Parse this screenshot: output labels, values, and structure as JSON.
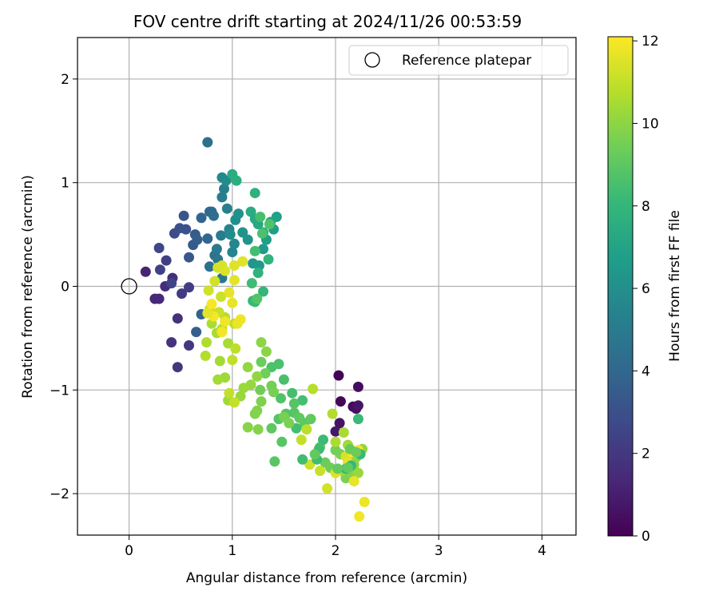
{
  "chart_data": {
    "type": "scatter",
    "title": "FOV centre drift starting at 2024/11/26 00:53:59",
    "xlabel": "Angular distance from reference (arcmin)",
    "ylabel": "Rotation from reference (arcmin)",
    "xlim": [
      -0.5,
      4.33
    ],
    "ylim": [
      -2.4,
      2.4
    ],
    "xticks": [
      0,
      1,
      2,
      3,
      4
    ],
    "xtick_labels": [
      "0",
      "1",
      "2",
      "3",
      "4"
    ],
    "yticks": [
      2,
      1,
      0,
      -1,
      -2
    ],
    "ytick_labels": [
      "2",
      "1",
      "0",
      "−1",
      "−2"
    ],
    "grid": true,
    "legend": {
      "position": "top-right",
      "entries": [
        "Reference platepar"
      ]
    },
    "reference_point": {
      "x": 0,
      "y": 0,
      "label": "Reference platepar"
    },
    "colorbar": {
      "label": "Hours from first FF file",
      "range": [
        0,
        12.1
      ],
      "ticks": [
        0,
        2,
        4,
        6,
        8,
        10,
        12
      ],
      "tick_labels": [
        "0",
        "2",
        "4",
        "6",
        "8",
        "10",
        "12"
      ],
      "colormap": "viridis",
      "colors": [
        "#440154",
        "#482878",
        "#3e4989",
        "#31688e",
        "#26828e",
        "#1f9e89",
        "#35b779",
        "#6ece58",
        "#b5de2b",
        "#fde725"
      ]
    },
    "points": [
      [
        2.03,
        -0.86,
        0.1
      ],
      [
        2.05,
        -1.11,
        0.2
      ],
      [
        2.17,
        -1.16,
        0.3
      ],
      [
        2.22,
        -0.97,
        0.4
      ],
      [
        2.2,
        -1.18,
        0.5
      ],
      [
        2.04,
        -1.32,
        0.6
      ],
      [
        2.22,
        -1.15,
        0.7
      ],
      [
        2.0,
        -1.4,
        0.8
      ],
      [
        0.16,
        0.14,
        1.2
      ],
      [
        0.25,
        -0.12,
        1.3
      ],
      [
        0.29,
        -0.12,
        1.4
      ],
      [
        0.35,
        0.0,
        1.5
      ],
      [
        0.42,
        0.08,
        1.6
      ],
      [
        0.47,
        -0.31,
        1.7
      ],
      [
        0.41,
        -0.54,
        1.8
      ],
      [
        0.47,
        -0.78,
        1.9
      ],
      [
        0.58,
        -0.57,
        2.0
      ],
      [
        0.51,
        -0.07,
        2.1
      ],
      [
        0.58,
        -0.01,
        2.2
      ],
      [
        0.36,
        0.25,
        2.3
      ],
      [
        0.3,
        0.16,
        2.4
      ],
      [
        0.41,
        0.03,
        2.5
      ],
      [
        0.29,
        0.37,
        2.6
      ],
      [
        0.44,
        0.51,
        2.8
      ],
      [
        0.49,
        0.56,
        3.0
      ],
      [
        0.55,
        0.55,
        3.1
      ],
      [
        0.53,
        0.68,
        3.2
      ],
      [
        0.58,
        0.28,
        3.3
      ],
      [
        0.62,
        0.4,
        3.4
      ],
      [
        0.64,
        0.5,
        3.5
      ],
      [
        0.66,
        0.45,
        3.6
      ],
      [
        0.65,
        -0.44,
        3.7
      ],
      [
        0.7,
        -0.27,
        3.8
      ],
      [
        0.7,
        0.66,
        3.9
      ],
      [
        0.76,
        0.46,
        4.0
      ],
      [
        0.78,
        0.72,
        4.1
      ],
      [
        0.8,
        0.72,
        4.2
      ],
      [
        0.82,
        0.68,
        4.3
      ],
      [
        0.76,
        1.39,
        4.4
      ],
      [
        0.78,
        0.19,
        4.5
      ],
      [
        0.83,
        0.3,
        4.6
      ],
      [
        0.86,
        0.26,
        4.7
      ],
      [
        0.9,
        0.08,
        4.8
      ],
      [
        0.85,
        0.36,
        4.9
      ],
      [
        0.89,
        0.49,
        5.0
      ],
      [
        0.9,
        0.86,
        5.1
      ],
      [
        0.92,
        0.94,
        5.2
      ],
      [
        0.95,
        0.75,
        5.3
      ],
      [
        0.97,
        0.55,
        5.4
      ],
      [
        1.0,
        0.33,
        5.5
      ],
      [
        1.02,
        0.41,
        5.6
      ],
      [
        0.9,
        1.05,
        5.7
      ],
      [
        0.94,
        1.02,
        5.8
      ],
      [
        0.98,
        0.5,
        5.9
      ],
      [
        1.03,
        0.64,
        6.0
      ],
      [
        1.06,
        0.7,
        6.1
      ],
      [
        1.1,
        0.52,
        6.2
      ],
      [
        1.15,
        0.45,
        6.3
      ],
      [
        1.2,
        0.22,
        6.4
      ],
      [
        1.26,
        0.2,
        6.5
      ],
      [
        1.3,
        0.36,
        6.6
      ],
      [
        1.33,
        0.45,
        6.7
      ],
      [
        1.4,
        0.55,
        6.8
      ],
      [
        1.43,
        0.67,
        6.9
      ],
      [
        1.37,
        0.62,
        7.0
      ],
      [
        1.3,
        0.52,
        7.1
      ],
      [
        1.25,
        0.6,
        7.2
      ],
      [
        1.22,
        0.65,
        7.3
      ],
      [
        1.18,
        0.72,
        7.4
      ],
      [
        1.0,
        1.08,
        7.5
      ],
      [
        1.04,
        1.02,
        7.6
      ],
      [
        1.22,
        0.9,
        7.7
      ],
      [
        1.25,
        0.13,
        7.8
      ],
      [
        1.35,
        0.26,
        7.9
      ],
      [
        1.3,
        -0.05,
        8.0
      ],
      [
        1.2,
        -0.14,
        8.1
      ],
      [
        1.22,
        -0.15,
        8.2
      ],
      [
        1.19,
        0.03,
        8.3
      ],
      [
        1.22,
        0.34,
        8.4
      ],
      [
        1.27,
        0.67,
        8.5
      ],
      [
        1.29,
        0.51,
        8.6
      ],
      [
        1.36,
        0.6,
        8.7
      ],
      [
        1.24,
        -0.12,
        8.8
      ],
      [
        1.6,
        -1.22,
        8.9
      ],
      [
        1.7,
        -1.32,
        9.0
      ],
      [
        1.76,
        -1.28,
        9.1
      ],
      [
        1.85,
        -1.55,
        9.2
      ],
      [
        1.9,
        -1.7,
        9.3
      ],
      [
        1.95,
        -1.75,
        9.4
      ],
      [
        2.0,
        -1.58,
        9.5
      ],
      [
        2.05,
        -1.62,
        9.6
      ],
      [
        2.1,
        -1.85,
        9.7
      ],
      [
        2.15,
        -1.8,
        9.8
      ],
      [
        2.18,
        -1.72,
        9.9
      ],
      [
        2.2,
        -1.65,
        10.0
      ],
      [
        2.26,
        -1.57,
        10.1
      ],
      [
        2.22,
        -1.8,
        10.2
      ],
      [
        2.06,
        -1.78,
        10.3
      ],
      [
        2.12,
        -1.53,
        10.4
      ],
      [
        2.08,
        -1.41,
        10.5
      ],
      [
        2.0,
        -1.5,
        10.6
      ],
      [
        1.97,
        -1.23,
        10.7
      ],
      [
        1.78,
        -0.99,
        10.8
      ],
      [
        1.72,
        -1.38,
        10.9
      ],
      [
        1.67,
        -1.48,
        11.0
      ],
      [
        1.85,
        -1.78,
        11.1
      ],
      [
        1.75,
        -1.72,
        11.2
      ],
      [
        1.92,
        -1.95,
        11.3
      ],
      [
        2.1,
        -1.64,
        11.4
      ],
      [
        2.0,
        -1.8,
        11.5
      ],
      [
        2.12,
        -1.7,
        11.6
      ],
      [
        2.18,
        -1.88,
        11.7
      ],
      [
        2.28,
        -2.08,
        11.8
      ],
      [
        2.23,
        -2.22,
        11.9
      ],
      [
        2.22,
        -1.58,
        11.95
      ],
      [
        2.16,
        -1.6,
        12.0
      ],
      [
        2.15,
        -1.73,
        8.0
      ],
      [
        2.1,
        -1.76,
        8.05
      ],
      [
        2.24,
        -1.62,
        8.1
      ],
      [
        2.22,
        -1.28,
        8.15
      ],
      [
        1.88,
        -1.48,
        8.2
      ],
      [
        1.84,
        -1.57,
        8.25
      ],
      [
        1.82,
        -1.67,
        8.3
      ],
      [
        1.68,
        -1.67,
        8.35
      ],
      [
        1.62,
        -1.37,
        8.4
      ],
      [
        1.68,
        -1.1,
        8.45
      ],
      [
        1.58,
        -1.03,
        8.5
      ],
      [
        1.5,
        -0.9,
        8.55
      ],
      [
        1.45,
        -0.75,
        8.6
      ],
      [
        1.38,
        -0.78,
        8.65
      ],
      [
        1.47,
        -1.08,
        8.7
      ],
      [
        1.52,
        -1.23,
        8.75
      ],
      [
        1.45,
        -1.28,
        8.8
      ],
      [
        1.6,
        -1.13,
        8.85
      ],
      [
        1.48,
        -1.5,
        8.9
      ],
      [
        1.41,
        -1.69,
        8.95
      ],
      [
        1.38,
        -1.37,
        9.0
      ],
      [
        1.65,
        -1.27,
        9.05
      ],
      [
        1.8,
        -1.62,
        9.1
      ],
      [
        2.12,
        -1.75,
        9.15
      ],
      [
        2.02,
        -1.76,
        9.2
      ],
      [
        2.14,
        -1.57,
        9.25
      ],
      [
        2.2,
        -1.6,
        9.3
      ],
      [
        1.28,
        -0.73,
        9.35
      ],
      [
        1.32,
        -0.84,
        9.4
      ],
      [
        1.27,
        -1.0,
        9.45
      ],
      [
        1.38,
        -0.96,
        9.5
      ],
      [
        1.4,
        -1.02,
        9.55
      ],
      [
        1.5,
        -1.26,
        9.6
      ],
      [
        1.55,
        -1.32,
        9.65
      ],
      [
        1.28,
        -1.11,
        9.7
      ],
      [
        1.24,
        -1.2,
        9.75
      ],
      [
        1.22,
        -1.23,
        9.8
      ],
      [
        1.25,
        -1.38,
        9.85
      ],
      [
        1.15,
        -1.36,
        9.9
      ],
      [
        1.33,
        -0.63,
        9.95
      ],
      [
        1.28,
        -0.54,
        10.0
      ],
      [
        1.24,
        -0.87,
        10.05
      ],
      [
        1.15,
        -0.78,
        10.1
      ],
      [
        1.18,
        -0.95,
        10.15
      ],
      [
        1.08,
        -1.06,
        10.2
      ],
      [
        1.11,
        -0.98,
        10.25
      ],
      [
        0.93,
        -0.88,
        10.3
      ],
      [
        0.96,
        -1.1,
        10.35
      ],
      [
        0.86,
        -0.9,
        10.4
      ],
      [
        0.88,
        -0.72,
        10.45
      ],
      [
        0.96,
        -0.55,
        10.5
      ],
      [
        0.85,
        -0.45,
        10.55
      ],
      [
        0.8,
        -0.36,
        10.6
      ],
      [
        0.75,
        -0.54,
        10.65
      ],
      [
        0.74,
        -0.67,
        10.7
      ],
      [
        0.9,
        -0.41,
        10.75
      ],
      [
        0.93,
        -0.3,
        10.8
      ],
      [
        1.02,
        -0.36,
        10.85
      ],
      [
        1.03,
        -0.6,
        10.9
      ],
      [
        1.0,
        -0.71,
        10.95
      ],
      [
        0.97,
        -1.03,
        11.0
      ],
      [
        1.02,
        -1.12,
        11.05
      ],
      [
        0.87,
        -0.25,
        11.1
      ],
      [
        0.89,
        -0.1,
        11.15
      ],
      [
        0.78,
        -0.22,
        11.2
      ],
      [
        0.77,
        -0.04,
        11.25
      ],
      [
        0.83,
        0.05,
        11.3
      ],
      [
        0.86,
        0.18,
        11.35
      ],
      [
        0.9,
        0.2,
        11.4
      ],
      [
        0.93,
        0.15,
        11.45
      ],
      [
        1.02,
        0.2,
        11.5
      ],
      [
        1.1,
        0.24,
        11.55
      ],
      [
        1.02,
        0.06,
        11.6
      ],
      [
        0.97,
        -0.06,
        11.65
      ],
      [
        1.0,
        -0.16,
        11.7
      ],
      [
        1.05,
        -0.36,
        11.75
      ],
      [
        1.08,
        -0.32,
        11.8
      ],
      [
        0.93,
        -0.34,
        11.85
      ],
      [
        0.9,
        -0.44,
        11.9
      ],
      [
        0.82,
        -0.29,
        11.95
      ],
      [
        0.8,
        -0.17,
        12.0
      ],
      [
        0.76,
        -0.26,
        11.6
      ]
    ]
  }
}
